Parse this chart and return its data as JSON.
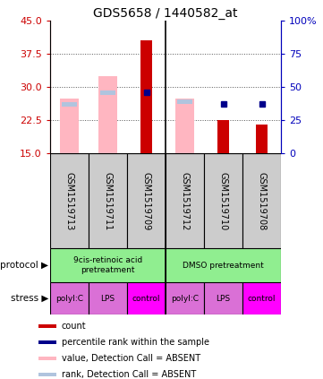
{
  "title": "GDS5658 / 1440582_at",
  "samples": [
    "GSM1519713",
    "GSM1519711",
    "GSM1519709",
    "GSM1519712",
    "GSM1519710",
    "GSM1519708"
  ],
  "ylim_left": [
    15,
    45
  ],
  "ylim_right": [
    0,
    100
  ],
  "yticks_left": [
    15,
    22.5,
    30,
    37.5,
    45
  ],
  "yticks_right": [
    0,
    25,
    50,
    75,
    100
  ],
  "count_values": [
    null,
    null,
    40.5,
    null,
    22.5,
    21.5
  ],
  "rank_values": [
    null,
    null,
    28.8,
    null,
    26.2,
    26.2
  ],
  "value_absent": [
    27.5,
    32.5,
    null,
    27.5,
    null,
    null
  ],
  "rank_absent": [
    26.2,
    28.8,
    null,
    26.8,
    null,
    null
  ],
  "count_color": "#CC0000",
  "rank_color": "#00008B",
  "value_absent_color": "#FFB6C1",
  "rank_absent_color": "#B0C4DE",
  "grid_color": "#555555",
  "axis_color_left": "#CC0000",
  "axis_color_right": "#0000BB",
  "sample_box_color": "#CCCCCC",
  "protocol_color": "#90EE90",
  "stress_color_light": "#DA70D6",
  "stress_color_dark": "#FF00FF",
  "stress_labels": [
    "polyI:C",
    "LPS",
    "control",
    "polyI:C",
    "LPS",
    "control"
  ],
  "stress_is_dark": [
    false,
    false,
    true,
    false,
    false,
    true
  ]
}
